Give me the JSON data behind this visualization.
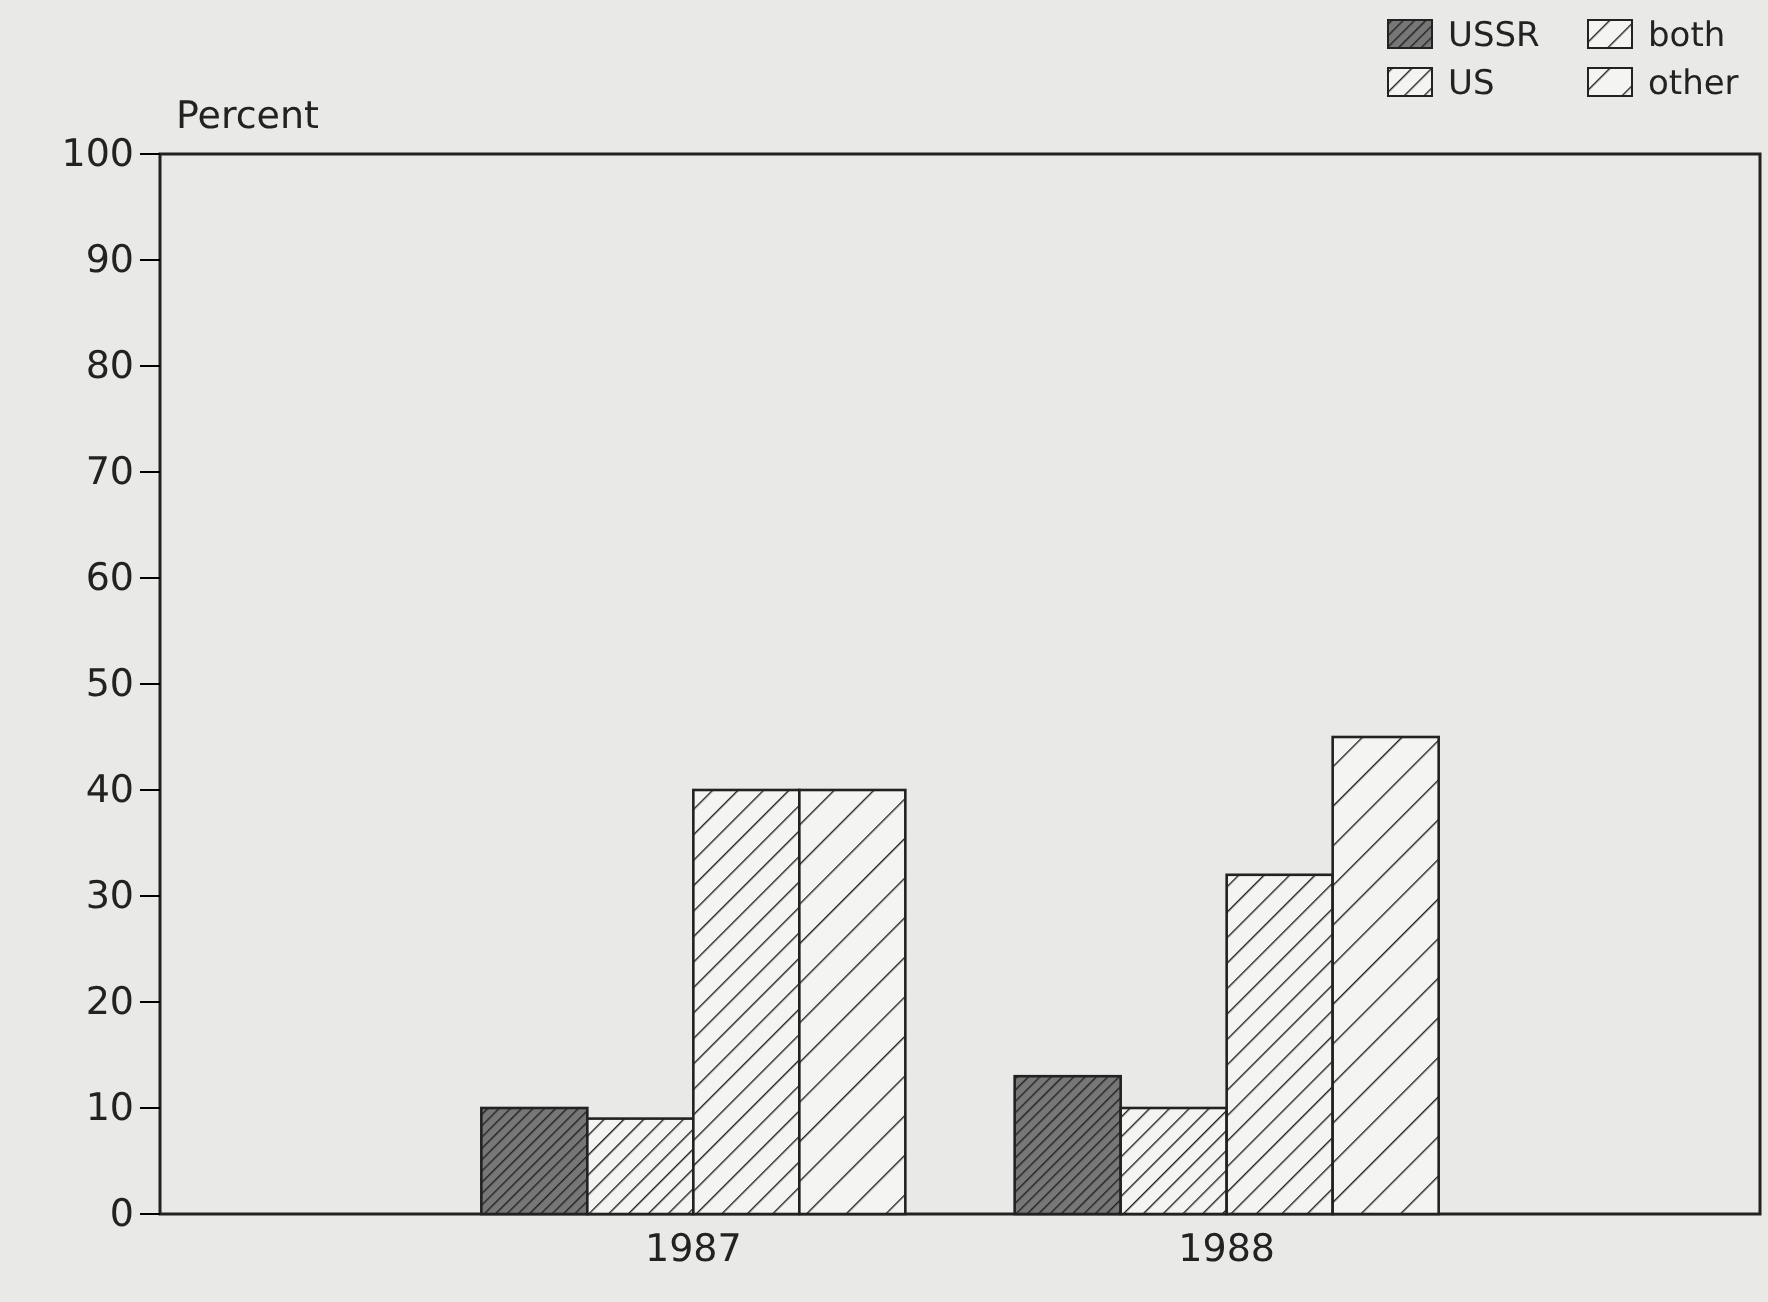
{
  "chart_data": {
    "type": "bar",
    "ylabel": "Percent",
    "categories": [
      "1987",
      "1988"
    ],
    "series": [
      {
        "name": "USSR",
        "color": "#222222",
        "values": [
          10,
          13
        ]
      },
      {
        "name": "US",
        "color": "#222222",
        "values": [
          9,
          10
        ]
      },
      {
        "name": "both",
        "color": "#222222",
        "values": [
          40,
          32
        ]
      },
      {
        "name": "other",
        "color": "#222222",
        "values": [
          40,
          45
        ]
      }
    ],
    "ylim": [
      0,
      100
    ],
    "yticks": [
      0,
      10,
      20,
      30,
      40,
      50,
      60,
      70,
      80,
      90,
      100
    ],
    "legend": "top right",
    "grid": false
  }
}
